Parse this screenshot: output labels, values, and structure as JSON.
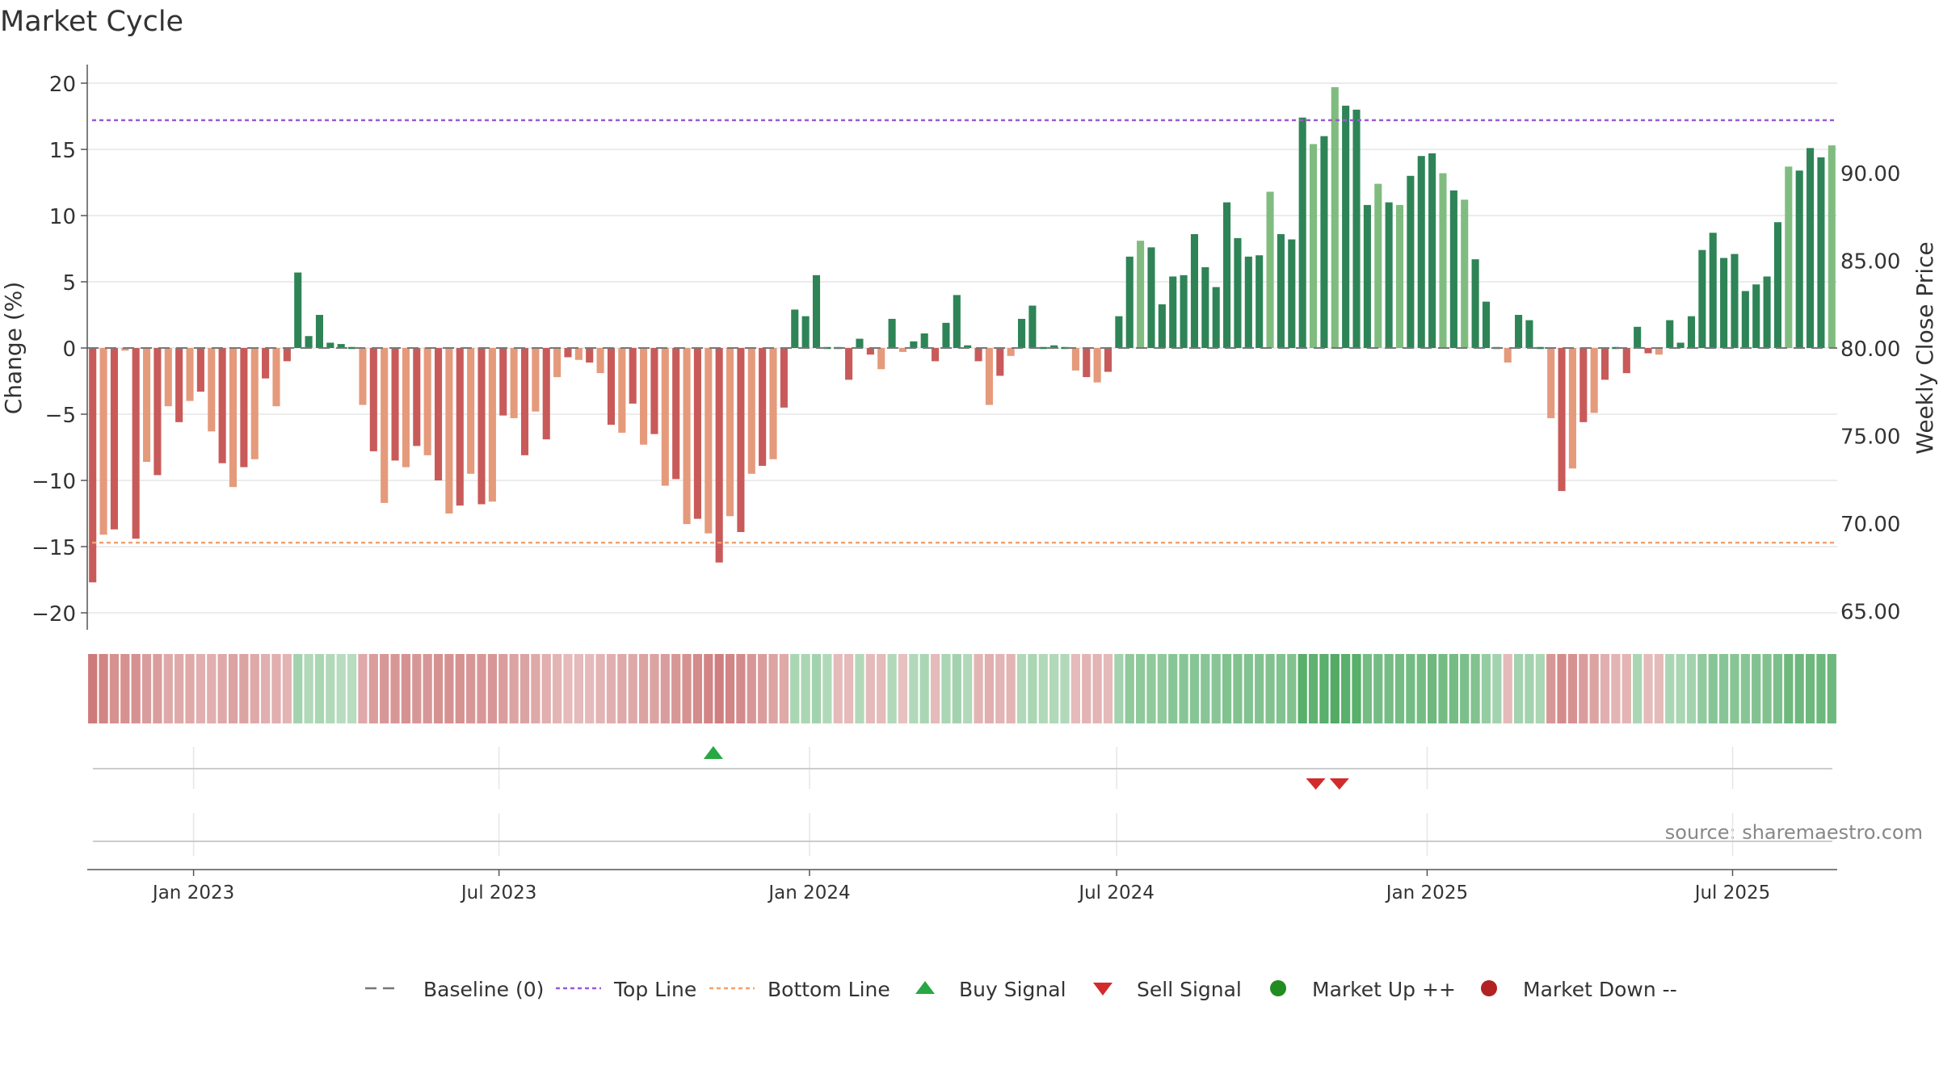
{
  "chart_data": {
    "type": "bar",
    "title": "Market Cycle",
    "ylabel": "Change (%)",
    "y2label": "Weekly Close Price",
    "ylim": [
      -21.5,
      22
    ],
    "y2lim": [
      61.8,
      96
    ],
    "yticks": [
      "20",
      "15",
      "10",
      "5",
      "0",
      "−5",
      "−10",
      "−15",
      "−20"
    ],
    "ytick_values": [
      20,
      15,
      10,
      5,
      0,
      -5,
      -10,
      -15,
      -20
    ],
    "y2ticks": [
      "90.00",
      "85.00",
      "80.00",
      "75.00",
      "70.00",
      "65.00"
    ],
    "y2tick_values": [
      90,
      85,
      80,
      75,
      70,
      65
    ],
    "xticks": [
      "Jan 2023",
      "Jul 2023",
      "Jan 2024",
      "Jul 2024",
      "Jan 2025",
      "Jul 2025"
    ],
    "xtick_dates": [
      "2023-01-01",
      "2023-07-01",
      "2024-01-01",
      "2024-07-01",
      "2025-01-01",
      "2025-07-01"
    ],
    "date_range": [
      "2022-10-30",
      "2025-09-01"
    ],
    "top_line": 17.2,
    "bottom_line": -14.7,
    "grid": true,
    "legend_position": "bottom",
    "source_text": "source: sharemaestro.com",
    "series": [
      {
        "values": [
          -17.7,
          -14.1,
          -13.7,
          -0.2,
          -14.4,
          -8.6,
          -9.6,
          -4.4,
          -5.6,
          -4.0,
          -3.3,
          -6.3,
          -8.7,
          -10.5,
          -9.0,
          -8.4,
          -2.3,
          -4.4,
          -1.0,
          5.7,
          0.9,
          2.5,
          0.4,
          0.3,
          0.0,
          -4.3,
          -7.8,
          -11.7,
          -8.5,
          -9.0,
          -7.4,
          -8.1,
          -10.0,
          -12.5,
          -11.9,
          -9.5,
          -11.8,
          -11.6,
          -5.1,
          -5.3,
          -8.1,
          -4.8,
          -6.9,
          -2.2,
          -0.7,
          -0.9,
          -1.1,
          -1.9,
          -5.8,
          -6.4,
          -4.2,
          -7.3,
          -6.5,
          -10.4,
          -9.9,
          -13.3,
          -12.9,
          -14.0,
          -16.2,
          -12.7,
          -13.9,
          -9.5,
          -8.9,
          -8.4,
          -4.5,
          2.9,
          2.4,
          5.5,
          0.1,
          0.0,
          -2.4,
          0.7,
          -0.5,
          -1.6,
          2.2,
          -0.3,
          0.5,
          1.1,
          -1.0,
          1.9,
          4.0,
          0.2,
          -1.0,
          -4.3,
          -2.1,
          -0.6,
          2.2,
          3.2,
          0.0,
          0.2,
          0.1,
          -1.7,
          -2.2,
          -2.6,
          -1.8,
          2.4,
          6.9,
          8.1,
          7.6,
          3.3,
          5.4,
          5.5,
          8.6,
          6.1,
          4.6,
          11.0,
          8.3,
          6.9,
          7.0,
          11.8,
          8.6,
          8.2,
          17.4,
          15.4,
          16.0,
          19.7,
          18.3,
          18.0,
          10.8,
          12.4,
          11.0,
          10.8,
          13.0,
          14.5,
          14.7,
          13.2,
          11.9,
          11.2,
          6.7,
          3.5,
          0.0,
          -1.1,
          2.5,
          2.1,
          0.0,
          -5.3,
          -10.8,
          -9.1,
          -5.6,
          -4.9,
          -2.4,
          0.0,
          -1.9,
          1.6,
          -0.4,
          -0.5,
          2.1,
          0.4,
          2.4,
          7.4,
          8.7,
          6.8,
          7.1,
          4.3,
          4.8,
          5.4,
          9.5,
          13.7,
          13.4,
          15.1,
          14.4,
          15.3
        ]
      }
    ],
    "band_strength": [
      -0.8,
      -0.7,
      -0.6,
      -0.6,
      -0.6,
      -0.5,
      -0.5,
      -0.4,
      -0.4,
      -0.4,
      -0.35,
      -0.35,
      -0.4,
      -0.45,
      -0.45,
      -0.4,
      -0.35,
      -0.35,
      -0.3,
      0.35,
      0.25,
      0.3,
      0.25,
      0.2,
      0.2,
      -0.4,
      -0.5,
      -0.55,
      -0.55,
      -0.6,
      -0.55,
      -0.55,
      -0.6,
      -0.6,
      -0.6,
      -0.55,
      -0.55,
      -0.55,
      -0.5,
      -0.45,
      -0.45,
      -0.4,
      -0.35,
      -0.3,
      -0.25,
      -0.25,
      -0.25,
      -0.3,
      -0.35,
      -0.4,
      -0.4,
      -0.45,
      -0.45,
      -0.5,
      -0.55,
      -0.6,
      -0.65,
      -0.7,
      -0.75,
      -0.7,
      -0.65,
      -0.55,
      -0.5,
      -0.45,
      -0.4,
      0.3,
      0.3,
      0.35,
      0.25,
      -0.25,
      -0.25,
      0.25,
      -0.25,
      -0.25,
      0.25,
      -0.2,
      0.25,
      0.3,
      -0.25,
      0.3,
      0.35,
      0.25,
      -0.3,
      -0.35,
      -0.3,
      -0.3,
      0.25,
      0.3,
      0.25,
      0.25,
      0.25,
      -0.25,
      -0.3,
      -0.3,
      -0.25,
      0.35,
      0.5,
      0.5,
      0.5,
      0.5,
      0.55,
      0.55,
      0.55,
      0.55,
      0.55,
      0.6,
      0.6,
      0.6,
      0.6,
      0.6,
      0.6,
      0.6,
      0.9,
      0.85,
      0.9,
      0.95,
      0.9,
      0.9,
      0.7,
      0.7,
      0.7,
      0.7,
      0.7,
      0.7,
      0.75,
      0.7,
      0.7,
      0.65,
      0.6,
      0.45,
      0.35,
      -0.25,
      0.35,
      0.35,
      0.3,
      -0.55,
      -0.65,
      -0.6,
      -0.5,
      -0.45,
      -0.35,
      -0.3,
      -0.3,
      0.3,
      -0.25,
      -0.25,
      0.3,
      0.3,
      0.35,
      0.5,
      0.55,
      0.55,
      0.55,
      0.55,
      0.6,
      0.6,
      0.65,
      0.75,
      0.75,
      0.75,
      0.75,
      0.75
    ],
    "buy_signals": [
      "2023-11-05"
    ],
    "sell_signals": [
      "2024-10-27",
      "2024-11-10"
    ],
    "legend": [
      "Baseline (0)",
      "Top Line",
      "Bottom Line",
      "Buy Signal",
      "Sell Signal",
      "Market Up ++",
      "Market Down --"
    ],
    "colors": {
      "up_dark": "#2e8456",
      "up_light": "#80bc80",
      "down_dark": "#c95a5a",
      "down_light": "#e59a7c",
      "top_line": "#9b59d6",
      "bottom_line": "#f0a26e",
      "buy": "#27a844",
      "sell": "#d22b2b",
      "market_up": "#228b22",
      "market_down": "#b22222",
      "baseline": "#777777",
      "grid": "#e6e6e6"
    }
  }
}
